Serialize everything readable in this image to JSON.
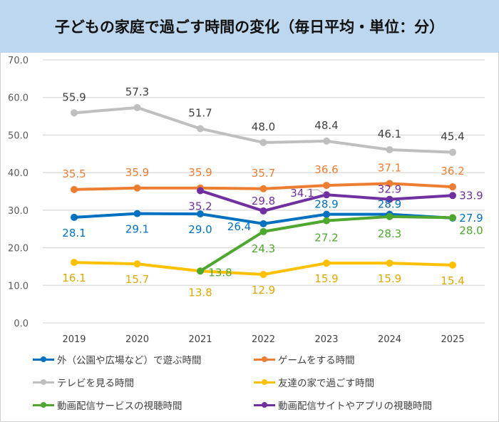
{
  "title": "子どもの家庭で過ごす時間の変化（毎日平均・単位：分）",
  "chart_data": {
    "type": "line",
    "title": "子どもの家庭で過ごす時間の変化（毎日平均・単位：分）",
    "xlabel": "",
    "ylabel": "",
    "categories": [
      "2019",
      "2020",
      "2021",
      "2022",
      "2023",
      "2024",
      "2025"
    ],
    "ylim": [
      0,
      70
    ],
    "yticks": [
      "0.0",
      "10.0",
      "20.0",
      "30.0",
      "40.0",
      "50.0",
      "60.0",
      "70.0"
    ],
    "grid": true,
    "legend_position": "bottom",
    "series": [
      {
        "name": "外（公園や広場など）で遊ぶ時間",
        "color": "#0070c0",
        "values": [
          28.1,
          29.1,
          29.0,
          26.4,
          28.9,
          28.9,
          27.9
        ],
        "labels": [
          "28.1",
          "29.1",
          "29.0",
          "26.4",
          "28.9",
          "28.9",
          "27.9"
        ]
      },
      {
        "name": "ゲームをする時間",
        "color": "#ed7d31",
        "values": [
          35.5,
          35.9,
          35.9,
          35.7,
          36.6,
          37.1,
          36.2
        ],
        "labels": [
          "35.5",
          "35.9",
          "35.9",
          "35.7",
          "36.6",
          "37.1",
          "36.2"
        ]
      },
      {
        "name": "テレビを見る時間",
        "color": "#bfbfbf",
        "label_color": "#404040",
        "values": [
          55.9,
          57.3,
          51.7,
          48.0,
          48.4,
          46.1,
          45.4
        ],
        "labels": [
          "55.9",
          "57.3",
          "51.7",
          "48.0",
          "48.4",
          "46.1",
          "45.4"
        ]
      },
      {
        "name": "友達の家で過ごす時間",
        "color": "#ffc000",
        "label_color": "#e0a800",
        "values": [
          16.1,
          15.7,
          13.8,
          12.9,
          15.9,
          15.9,
          15.4
        ],
        "labels": [
          "16.1",
          "15.7",
          "13.8",
          "12.9",
          "15.9",
          "15.9",
          "15.4"
        ]
      },
      {
        "name": "動画配信サービスの視聴時間",
        "color": "#4ea72e",
        "values": [
          null,
          null,
          13.8,
          24.3,
          27.2,
          28.3,
          28.0
        ],
        "labels": [
          null,
          null,
          "13.8",
          "24.3",
          "27.2",
          "28.3",
          "28.0"
        ]
      },
      {
        "name": "動画配信サイトやアプリの視聴時間",
        "color": "#7030a0",
        "values": [
          null,
          null,
          35.2,
          29.8,
          34.1,
          32.9,
          33.9
        ],
        "labels": [
          null,
          null,
          "35.2",
          "29.8",
          "34.1",
          "32.9",
          "33.9"
        ]
      }
    ]
  }
}
